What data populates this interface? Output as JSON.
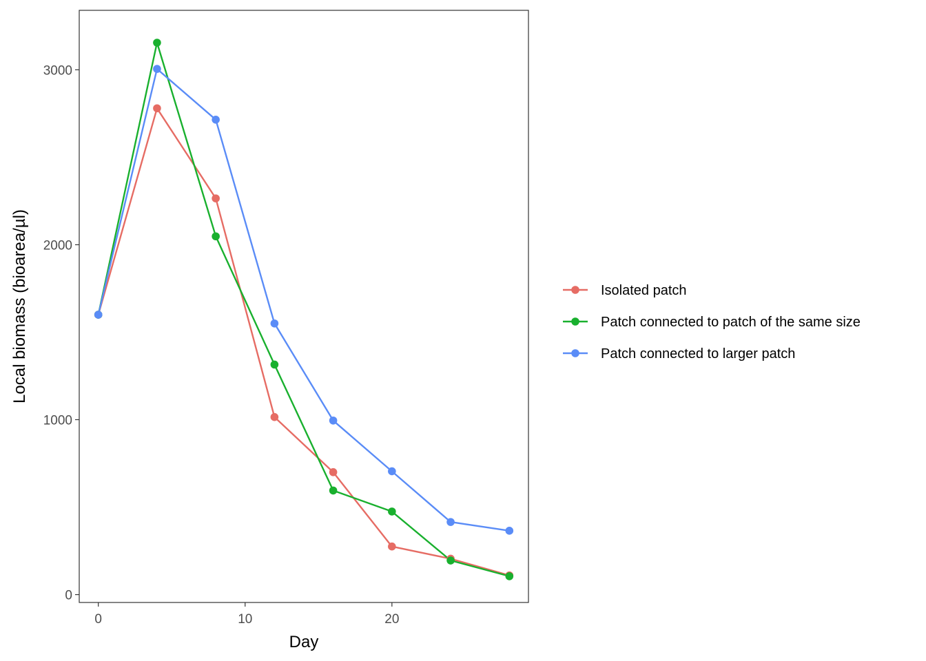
{
  "chart_data": {
    "type": "line",
    "title": "",
    "xlabel": "Day",
    "ylabel": "Local biomass (bioarea/µl)",
    "xlim": [
      -1.3,
      29.3
    ],
    "ylim": [
      -45,
      3340
    ],
    "x_ticks": [
      0,
      10,
      20
    ],
    "y_ticks": [
      0,
      1000,
      2000,
      3000
    ],
    "x_tick_labels": [
      "0",
      "10",
      "20"
    ],
    "y_tick_labels": [
      "0",
      "1000",
      "2000",
      "3000"
    ],
    "grid": false,
    "legend_position": "right",
    "x": [
      0,
      4,
      8,
      12,
      16,
      20,
      24,
      28
    ],
    "series": [
      {
        "name": "Isolated patch",
        "color": "#e66c64",
        "values": [
          1600,
          2780,
          2265,
          1015,
          700,
          275,
          205,
          110
        ]
      },
      {
        "name": "Patch connected to patch of the same size",
        "color": "#19b02e",
        "values": [
          1600,
          3155,
          2048,
          1315,
          595,
          475,
          195,
          105
        ]
      },
      {
        "name": "Patch connected to larger patch",
        "color": "#5a8cf7",
        "values": [
          1600,
          3005,
          2715,
          1550,
          995,
          705,
          415,
          365
        ]
      }
    ]
  }
}
